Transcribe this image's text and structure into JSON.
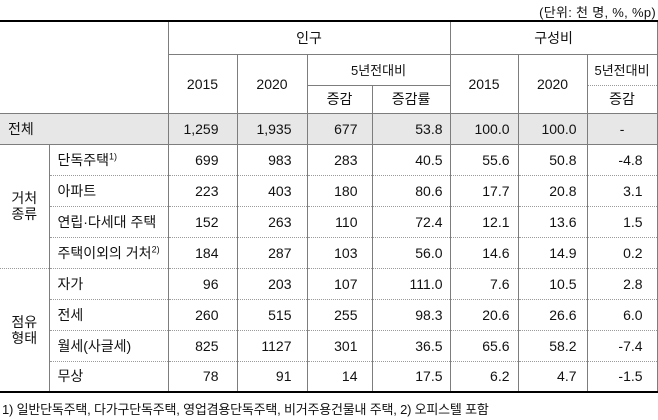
{
  "unit_note": "(단위: 천 명, %, %p)",
  "header": {
    "population": "인구",
    "composition": "구성비",
    "pop_2015": "2015",
    "pop_2020": "2020",
    "pop_diff5": "5년전대비",
    "pop_change": "증감",
    "pop_change_rate": "증감률",
    "comp_2015": "2015",
    "comp_2020": "2020",
    "comp_diff5": "5년전대비",
    "comp_change": "증감"
  },
  "total_row": {
    "label": "전체",
    "values": [
      "1,259",
      "1,935",
      "677",
      "53.8",
      "100.0",
      "100.0",
      "-"
    ]
  },
  "groups": [
    {
      "label": "거처\n종류",
      "rows": [
        {
          "label": "단독주택",
          "sup": "1)",
          "values": [
            "699",
            "983",
            "283",
            "40.5",
            "55.6",
            "50.8",
            "-4.8"
          ]
        },
        {
          "label": "아파트",
          "sup": "",
          "values": [
            "223",
            "403",
            "180",
            "80.6",
            "17.7",
            "20.8",
            "3.1"
          ]
        },
        {
          "label": "연립·다세대 주택",
          "sup": "",
          "values": [
            "152",
            "263",
            "110",
            "72.4",
            "12.1",
            "13.6",
            "1.5"
          ]
        },
        {
          "label": "주택이외의 거처",
          "sup": "2)",
          "values": [
            "184",
            "287",
            "103",
            "56.0",
            "14.6",
            "14.9",
            "0.2"
          ]
        }
      ]
    },
    {
      "label": "점유\n형태",
      "rows": [
        {
          "label": "자가",
          "sup": "",
          "values": [
            "96",
            "203",
            "107",
            "111.0",
            "7.6",
            "10.5",
            "2.8"
          ]
        },
        {
          "label": "전세",
          "sup": "",
          "values": [
            "260",
            "515",
            "255",
            "98.3",
            "20.6",
            "26.6",
            "6.0"
          ]
        },
        {
          "label": "월세(사글세)",
          "sup": "",
          "values": [
            "825",
            "1127",
            "301",
            "36.5",
            "65.6",
            "58.2",
            "-7.4"
          ]
        },
        {
          "label": "무상",
          "sup": "",
          "values": [
            "78",
            "91",
            "14",
            "17.5",
            "6.2",
            "4.7",
            "-1.5"
          ]
        }
      ]
    }
  ],
  "footnote": "1) 일반단독주택, 다가구단독주택, 영업겸용단독주택, 비거주용건물내 주택, 2) 오피스텔 포함",
  "colors": {
    "total_row_bg": "#e7e7e7",
    "border_solid": "#7d7d7d",
    "border_dotted": "#9a9a9a",
    "border_thick": "#000000"
  },
  "chart_data": {
    "type": "table",
    "unit": "천 명, %, %p",
    "column_headers": [
      "인구 2015",
      "인구 2020",
      "인구 5년전대비 증감",
      "인구 5년전대비 증감률",
      "구성비 2015",
      "구성비 2020",
      "구성비 5년전대비 증감"
    ],
    "row_labels": [
      "전체",
      "단독주택1)",
      "아파트",
      "연립·다세대 주택",
      "주택이외의 거처2)",
      "자가",
      "전세",
      "월세(사글세)",
      "무상"
    ],
    "values": [
      [
        1259,
        1935,
        677,
        53.8,
        100.0,
        100.0,
        null
      ],
      [
        699,
        983,
        283,
        40.5,
        55.6,
        50.8,
        -4.8
      ],
      [
        223,
        403,
        180,
        80.6,
        17.7,
        20.8,
        3.1
      ],
      [
        152,
        263,
        110,
        72.4,
        12.1,
        13.6,
        1.5
      ],
      [
        184,
        287,
        103,
        56.0,
        14.6,
        14.9,
        0.2
      ],
      [
        96,
        203,
        107,
        111.0,
        7.6,
        10.5,
        2.8
      ],
      [
        260,
        515,
        255,
        98.3,
        20.6,
        26.6,
        6.0
      ],
      [
        825,
        1127,
        301,
        36.5,
        65.6,
        58.2,
        -7.4
      ],
      [
        78,
        91,
        14,
        17.5,
        6.2,
        4.7,
        -1.5
      ]
    ]
  }
}
